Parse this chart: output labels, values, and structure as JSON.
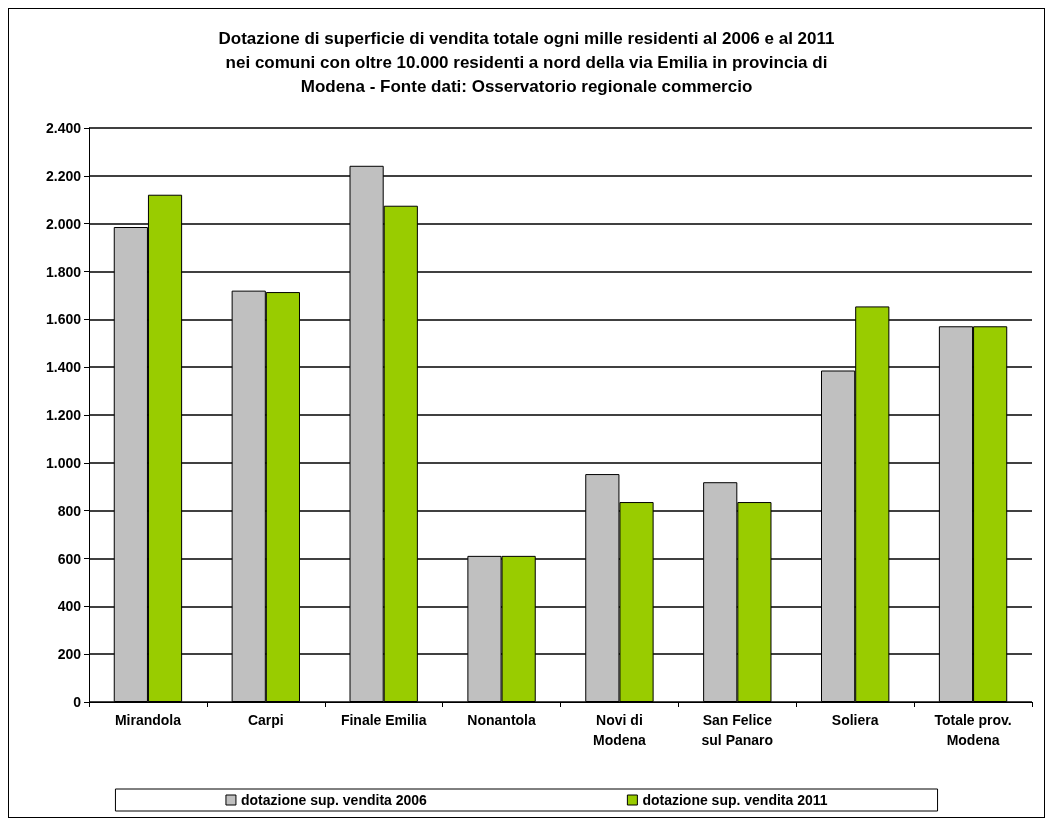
{
  "chart_data": {
    "type": "bar",
    "title": "Dotazione di superficie di vendita totale ogni mille residenti al 2006 e al 2011\nnei comuni con oltre 10.000 residenti a nord della via Emilia in provincia di\nModena - Fonte dati: Osservatorio regionale commercio",
    "categories": [
      "Mirandola",
      "Carpi",
      "Finale Emilia",
      "Nonantola",
      "Novi di\nModena",
      "San Felice\nsul Panaro",
      "Soliera",
      "Totale prov.\nModena"
    ],
    "series": [
      {
        "name": "dotazione sup. vendita 2006",
        "color": "#c0c0c0",
        "values": [
          1986,
          1720,
          2242,
          611,
          953,
          919,
          1386,
          1571
        ]
      },
      {
        "name": "dotazione sup. vendita 2011",
        "color": "#99cc00",
        "values": [
          2121,
          1714,
          2075,
          611,
          836,
          836,
          1654,
          1571
        ]
      }
    ],
    "ylim": [
      0,
      2400
    ],
    "yticks": [
      {
        "value": 0,
        "label": "0"
      },
      {
        "value": 200,
        "label": "200"
      },
      {
        "value": 400,
        "label": "400"
      },
      {
        "value": 600,
        "label": "600"
      },
      {
        "value": 800,
        "label": "800"
      },
      {
        "value": 1000,
        "label": "1.000"
      },
      {
        "value": 1200,
        "label": "1.200"
      },
      {
        "value": 1400,
        "label": "1.400"
      },
      {
        "value": 1600,
        "label": "1.600"
      },
      {
        "value": 1800,
        "label": "1.800"
      },
      {
        "value": 2000,
        "label": "2.000"
      },
      {
        "value": 2200,
        "label": "2.200"
      },
      {
        "value": 2400,
        "label": "2.400"
      }
    ],
    "grid": "y",
    "legend": "bottom"
  }
}
